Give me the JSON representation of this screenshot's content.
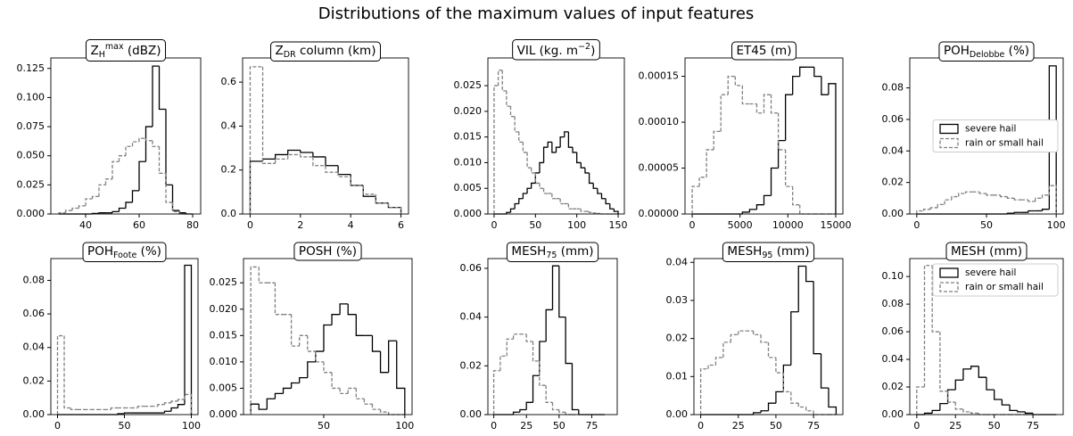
{
  "title": "Distributions of the maximum values  of input features",
  "chart_data": [
    {
      "type": "histogram",
      "title": [
        {
          "text": "Z"
        },
        {
          "text": "H",
          "shift": "sub"
        },
        {
          "text": "max",
          "shift": "sup"
        },
        {
          "text": " (dBZ)"
        }
      ],
      "bins": [
        30,
        32.5,
        35,
        37.5,
        40,
        42.5,
        45,
        47.5,
        50,
        52.5,
        55,
        57.5,
        60,
        62.5,
        65,
        67.5,
        70,
        72.5,
        75,
        77.5,
        80
      ],
      "series": [
        {
          "color": "#000000",
          "dash": false,
          "values": [
            0,
            0,
            0,
            0,
            0,
            0.0005,
            0.001,
            0.001,
            0.002,
            0.005,
            0.01,
            0.02,
            0.045,
            0.075,
            0.127,
            0.09,
            0.025,
            0.003,
            0.001,
            0
          ]
        },
        {
          "color": "#808080",
          "dash": true,
          "values": [
            0.001,
            0.003,
            0.005,
            0.007,
            0.013,
            0.015,
            0.025,
            0.03,
            0.045,
            0.05,
            0.058,
            0.062,
            0.065,
            0.063,
            0.058,
            0.035,
            0.01,
            0.002,
            0,
            0
          ]
        }
      ],
      "xlim": [
        27,
        83
      ],
      "xticks": [
        40,
        60,
        80
      ],
      "ylim": [
        0,
        0.134
      ],
      "yticks": [
        {
          "value": 0,
          "label": "0.000"
        },
        {
          "value": 0.025,
          "label": "0.025"
        },
        {
          "value": 0.05,
          "label": "0.050"
        },
        {
          "value": 0.075,
          "label": "0.075"
        },
        {
          "value": 0.1,
          "label": "0.100"
        },
        {
          "value": 0.125,
          "label": "0.125"
        }
      ]
    },
    {
      "type": "histogram",
      "title": [
        {
          "text": "Z"
        },
        {
          "text": "DR",
          "shift": "sub"
        },
        {
          "text": " column (km)"
        }
      ],
      "bins": [
        0,
        0.5,
        1,
        1.5,
        2,
        2.5,
        3,
        3.5,
        4,
        4.5,
        5,
        5.5,
        6
      ],
      "series": [
        {
          "color": "#000000",
          "dash": false,
          "values": [
            0.24,
            0.25,
            0.27,
            0.29,
            0.28,
            0.26,
            0.22,
            0.18,
            0.13,
            0.08,
            0.05,
            0.03
          ]
        },
        {
          "color": "#808080",
          "dash": true,
          "values": [
            0.67,
            0.23,
            0.25,
            0.27,
            0.26,
            0.22,
            0.19,
            0.17,
            0.13,
            0.09,
            0.05,
            0.03
          ]
        }
      ],
      "xlim": [
        -0.3,
        6.3
      ],
      "xticks": [
        0,
        2,
        4,
        6
      ],
      "ylim": [
        0,
        0.71
      ],
      "yticks": [
        {
          "value": 0,
          "label": "0.0"
        },
        0.2,
        0.4,
        0.6
      ]
    },
    {
      "type": "histogram",
      "title": [
        {
          "text": "VIL (kg. m"
        },
        {
          "text": "−2",
          "shift": "sup"
        },
        {
          "text": ")"
        }
      ],
      "bins": [
        0,
        5,
        10,
        15,
        20,
        25,
        30,
        35,
        40,
        45,
        50,
        55,
        60,
        65,
        70,
        75,
        80,
        85,
        90,
        95,
        100,
        105,
        110,
        115,
        120,
        125,
        130,
        135,
        140,
        145,
        150
      ],
      "series": [
        {
          "color": "#000000",
          "dash": false,
          "values": [
            0,
            0,
            0,
            0.0003,
            0.001,
            0.002,
            0.003,
            0.004,
            0.005,
            0.006,
            0.008,
            0.01,
            0.013,
            0.014,
            0.012,
            0.013,
            0.015,
            0.016,
            0.013,
            0.012,
            0.01,
            0.009,
            0.008,
            0.006,
            0.005,
            0.004,
            0.003,
            0.002,
            0.001,
            0.0005
          ]
        },
        {
          "color": "#808080",
          "dash": true,
          "values": [
            0.025,
            0.028,
            0.024,
            0.021,
            0.019,
            0.016,
            0.014,
            0.012,
            0.009,
            0.008,
            0.006,
            0.005,
            0.004,
            0.004,
            0.003,
            0.003,
            0.002,
            0.002,
            0.001,
            0.001,
            0.001,
            0.0005,
            0.0005,
            0.0003,
            0.0002,
            0.0001,
            0,
            0,
            0,
            0
          ]
        }
      ],
      "xlim": [
        -7.5,
        157.5
      ],
      "xticks": [
        0,
        50,
        100,
        150
      ],
      "ylim": [
        0,
        0.0304
      ],
      "yticks": [
        {
          "value": 0,
          "label": "0.000"
        },
        {
          "value": 0.005,
          "label": "0.005"
        },
        {
          "value": 0.01,
          "label": "0.010"
        },
        {
          "value": 0.015,
          "label": "0.015"
        },
        {
          "value": 0.02,
          "label": "0.020"
        },
        {
          "value": 0.025,
          "label": "0.025"
        }
      ]
    },
    {
      "type": "histogram",
      "title": [
        {
          "text": "ET45 (m)"
        }
      ],
      "bins": [
        0,
        750,
        1500,
        2250,
        3000,
        3750,
        4500,
        5250,
        6000,
        6750,
        7500,
        8250,
        9000,
        9750,
        10500,
        11250,
        12000,
        12750,
        13500,
        14250,
        15000
      ],
      "series": [
        {
          "color": "#000000",
          "dash": false,
          "values": [
            0,
            0,
            0,
            0,
            0,
            0,
            0,
            2e-06,
            5e-06,
            1e-05,
            2e-05,
            5e-05,
            8e-05,
            0.00013,
            0.00015,
            0.00016,
            0.00016,
            0.00015,
            0.00013,
            0.000142
          ]
        },
        {
          "color": "#808080",
          "dash": true,
          "values": [
            3e-05,
            4e-05,
            7e-05,
            9e-05,
            0.00013,
            0.00015,
            0.00014,
            0.00012,
            0.00012,
            0.00011,
            0.00013,
            0.00011,
            7e-05,
            3e-05,
            1e-05,
            0,
            0,
            0,
            0,
            0
          ]
        }
      ],
      "xlim": [
        -750,
        15750
      ],
      "xticks": [
        0,
        5000,
        10000,
        15000
      ],
      "ylim": [
        0,
        0.00017
      ],
      "yticks": [
        {
          "value": 0,
          "label": "0.00000"
        },
        {
          "value": 5e-05,
          "label": "0.00005"
        },
        {
          "value": 0.0001,
          "label": "0.00010"
        },
        {
          "value": 0.00015,
          "label": "0.00015"
        }
      ]
    },
    {
      "type": "histogram",
      "title": [
        {
          "text": "POH"
        },
        {
          "text": "Delobbe",
          "shift": "sub"
        },
        {
          "text": " (%)"
        }
      ],
      "bins": [
        0,
        5,
        10,
        15,
        20,
        25,
        30,
        35,
        40,
        45,
        50,
        55,
        60,
        65,
        70,
        75,
        80,
        85,
        90,
        95,
        100
      ],
      "series": [
        {
          "name": "severe hail",
          "color": "#000000",
          "dash": false,
          "values": [
            0,
            0,
            0,
            0,
            0,
            0,
            0,
            0,
            0,
            0,
            0,
            0,
            0,
            0.0005,
            0.001,
            0.001,
            0.002,
            0.002,
            0.003,
            0.094
          ]
        },
        {
          "name": "rain or small hail",
          "color": "#808080",
          "dash": true,
          "values": [
            0.002,
            0.003,
            0.004,
            0.006,
            0.009,
            0.011,
            0.013,
            0.014,
            0.014,
            0.013,
            0.012,
            0.012,
            0.011,
            0.01,
            0.009,
            0.009,
            0.008,
            0.01,
            0.012,
            0.018
          ]
        }
      ],
      "xlim": [
        -5,
        105
      ],
      "xticks": [
        0,
        50,
        100
      ],
      "ylim": [
        0,
        0.099
      ],
      "yticks": [
        {
          "value": 0,
          "label": "0.00"
        },
        {
          "value": 0.02,
          "label": "0.02"
        },
        {
          "value": 0.04,
          "label": "0.04"
        },
        {
          "value": 0.06,
          "label": "0.06"
        },
        {
          "value": 0.08,
          "label": "0.08"
        }
      ],
      "legend": "center right"
    },
    {
      "type": "histogram",
      "title": [
        {
          "text": "POH"
        },
        {
          "text": "Foote",
          "shift": "sub"
        },
        {
          "text": " (%)"
        }
      ],
      "bins": [
        0,
        5,
        10,
        15,
        20,
        25,
        30,
        35,
        40,
        45,
        50,
        55,
        60,
        65,
        70,
        75,
        80,
        85,
        90,
        95,
        100
      ],
      "series": [
        {
          "color": "#000000",
          "dash": false,
          "values": [
            0,
            0,
            0,
            0,
            0,
            0,
            0,
            0,
            0,
            0.0005,
            0.001,
            0.001,
            0.001,
            0.001,
            0.001,
            0.001,
            0.002,
            0.004,
            0.006,
            0.089
          ]
        },
        {
          "color": "#808080",
          "dash": true,
          "values": [
            0.047,
            0.004,
            0.003,
            0.003,
            0.003,
            0.003,
            0.003,
            0.003,
            0.004,
            0.004,
            0.004,
            0.004,
            0.005,
            0.005,
            0.005,
            0.006,
            0.007,
            0.008,
            0.009,
            0.012
          ]
        }
      ],
      "xlim": [
        -5,
        105
      ],
      "xticks": [
        0,
        50,
        100
      ],
      "ylim": [
        0,
        0.093
      ],
      "yticks": [
        {
          "value": 0,
          "label": "0.00"
        },
        {
          "value": 0.02,
          "label": "0.02"
        },
        {
          "value": 0.04,
          "label": "0.04"
        },
        {
          "value": 0.06,
          "label": "0.06"
        },
        {
          "value": 0.08,
          "label": "0.08"
        }
      ]
    },
    {
      "type": "histogram",
      "title": [
        {
          "text": "POSH (%)"
        }
      ],
      "bins": [
        5,
        10,
        15,
        20,
        25,
        30,
        35,
        40,
        45,
        50,
        55,
        60,
        65,
        70,
        75,
        80,
        85,
        90,
        95,
        100
      ],
      "series": [
        {
          "color": "#000000",
          "dash": false,
          "values": [
            0.002,
            0.001,
            0.003,
            0.004,
            0.005,
            0.006,
            0.007,
            0.01,
            0.012,
            0.017,
            0.019,
            0.021,
            0.019,
            0.015,
            0.015,
            0.012,
            0.008,
            0.014,
            0.005
          ]
        },
        {
          "color": "#808080",
          "dash": true,
          "values": [
            0.028,
            0.025,
            0.025,
            0.019,
            0.019,
            0.013,
            0.015,
            0.012,
            0.01,
            0.008,
            0.005,
            0.004,
            0.005,
            0.003,
            0.002,
            0.001,
            0.0005,
            0,
            0
          ]
        }
      ],
      "xlim": [
        0.5,
        104.5
      ],
      "xticks": [
        50,
        100
      ],
      "ylim": [
        0,
        0.0296
      ],
      "yticks": [
        {
          "value": 0,
          "label": "0.000"
        },
        {
          "value": 0.005,
          "label": "0.005"
        },
        {
          "value": 0.01,
          "label": "0.010"
        },
        {
          "value": 0.015,
          "label": "0.015"
        },
        {
          "value": 0.02,
          "label": "0.020"
        },
        {
          "value": 0.025,
          "label": "0.025"
        }
      ]
    },
    {
      "type": "histogram",
      "title": [
        {
          "text": "MESH"
        },
        {
          "text": "75",
          "shift": "sub"
        },
        {
          "text": " (mm)"
        }
      ],
      "bins": [
        0,
        5,
        10,
        15,
        20,
        25,
        30,
        35,
        40,
        45,
        50,
        55,
        60,
        65,
        70,
        75,
        80,
        85
      ],
      "series": [
        {
          "color": "#000000",
          "dash": false,
          "values": [
            0,
            0,
            0,
            0.001,
            0.002,
            0.005,
            0.016,
            0.03,
            0.043,
            0.061,
            0.04,
            0.021,
            0.002,
            0,
            0,
            0,
            0
          ]
        },
        {
          "color": "#808080",
          "dash": true,
          "values": [
            0.018,
            0.024,
            0.031,
            0.033,
            0.033,
            0.03,
            0.022,
            0.012,
            0.005,
            0.002,
            0.001,
            0,
            0,
            0,
            0,
            0,
            0
          ]
        }
      ],
      "xlim": [
        -4.5,
        94.5
      ],
      "xticks": [
        0,
        25,
        50,
        75
      ],
      "ylim": [
        0,
        0.064
      ],
      "yticks": [
        {
          "value": 0,
          "label": "0.00"
        },
        {
          "value": 0.02,
          "label": "0.02"
        },
        {
          "value": 0.04,
          "label": "0.04"
        },
        {
          "value": 0.06,
          "label": "0.06"
        }
      ]
    },
    {
      "type": "histogram",
      "title": [
        {
          "text": "MESH"
        },
        {
          "text": "95",
          "shift": "sub"
        },
        {
          "text": " (mm)"
        }
      ],
      "bins": [
        0,
        5,
        10,
        15,
        20,
        25,
        30,
        35,
        40,
        45,
        50,
        55,
        60,
        65,
        70,
        75,
        80,
        85,
        90
      ],
      "series": [
        {
          "color": "#000000",
          "dash": false,
          "values": [
            0,
            0,
            0,
            0,
            0,
            0,
            0,
            0.0005,
            0.001,
            0.003,
            0.006,
            0.013,
            0.027,
            0.039,
            0.035,
            0.016,
            0.007,
            0.002
          ]
        },
        {
          "color": "#808080",
          "dash": true,
          "values": [
            0.012,
            0.013,
            0.015,
            0.019,
            0.021,
            0.022,
            0.022,
            0.021,
            0.019,
            0.015,
            0.011,
            0.006,
            0.003,
            0.002,
            0.001,
            0,
            0,
            0
          ]
        }
      ],
      "xlim": [
        -4.5,
        94.5
      ],
      "xticks": [
        0,
        25,
        50,
        75
      ],
      "ylim": [
        0,
        0.041
      ],
      "yticks": [
        {
          "value": 0,
          "label": "0.00"
        },
        {
          "value": 0.01,
          "label": "0.01"
        },
        {
          "value": 0.02,
          "label": "0.02"
        },
        {
          "value": 0.03,
          "label": "0.03"
        },
        {
          "value": 0.04,
          "label": "0.04"
        }
      ]
    },
    {
      "type": "histogram",
      "title": [
        {
          "text": "MESH (mm)"
        }
      ],
      "bins": [
        0,
        5,
        10,
        15,
        20,
        25,
        30,
        35,
        40,
        45,
        50,
        55,
        60,
        65,
        70,
        75,
        80,
        85,
        90
      ],
      "series": [
        {
          "name": "severe hail",
          "color": "#000000",
          "dash": false,
          "values": [
            0,
            0.001,
            0.003,
            0.008,
            0.018,
            0.025,
            0.033,
            0.035,
            0.027,
            0.018,
            0.011,
            0.007,
            0.003,
            0.002,
            0.001,
            0,
            0,
            0
          ]
        },
        {
          "name": "rain or small hail",
          "color": "#808080",
          "dash": true,
          "values": [
            0.02,
            0.108,
            0.06,
            0.017,
            0.009,
            0.004,
            0.002,
            0.001,
            0,
            0,
            0,
            0,
            0,
            0,
            0,
            0,
            0,
            0
          ]
        }
      ],
      "xlim": [
        -4.5,
        94.5
      ],
      "xticks": [
        0,
        25,
        50,
        75
      ],
      "ylim": [
        0,
        0.113
      ],
      "yticks": [
        {
          "value": 0,
          "label": "0.00"
        },
        {
          "value": 0.02,
          "label": "0.02"
        },
        {
          "value": 0.04,
          "label": "0.04"
        },
        {
          "value": 0.06,
          "label": "0.06"
        },
        {
          "value": 0.08,
          "label": "0.08"
        },
        {
          "value": 0.1,
          "label": "0.10"
        }
      ],
      "legend": "upper right"
    }
  ]
}
